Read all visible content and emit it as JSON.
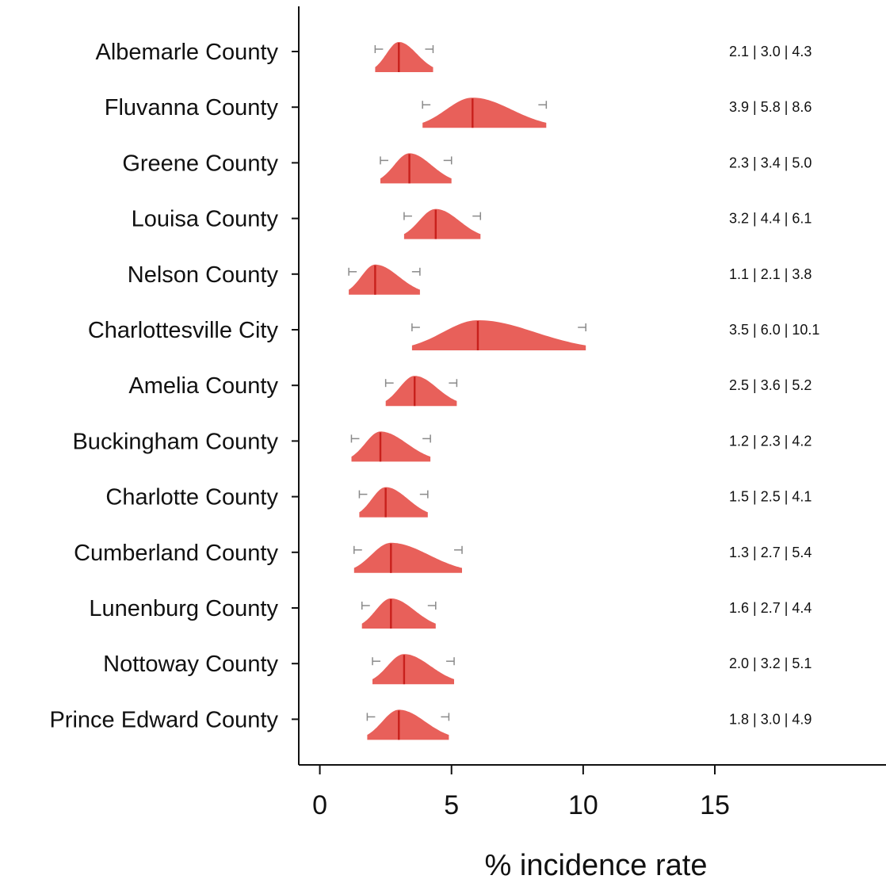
{
  "chart_data": {
    "type": "ridgeline",
    "xlabel": "% incidence rate",
    "xlim": [
      -0.8,
      21.5
    ],
    "x_ticks": [
      0,
      5,
      10,
      15
    ],
    "series_color": "#e8605a",
    "median_color": "#c8201c",
    "ci_color": "#8a8a8a",
    "categories": [
      {
        "name": "Albemarle County",
        "low": 2.1,
        "median": 3.0,
        "high": 4.3,
        "label": "2.1 | 3.0 | 4.3"
      },
      {
        "name": "Fluvanna County",
        "low": 3.9,
        "median": 5.8,
        "high": 8.6,
        "label": "3.9 | 5.8 | 8.6"
      },
      {
        "name": "Greene County",
        "low": 2.3,
        "median": 3.4,
        "high": 5.0,
        "label": "2.3 | 3.4 | 5.0"
      },
      {
        "name": "Louisa County",
        "low": 3.2,
        "median": 4.4,
        "high": 6.1,
        "label": "3.2 | 4.4 | 6.1"
      },
      {
        "name": "Nelson County",
        "low": 1.1,
        "median": 2.1,
        "high": 3.8,
        "label": "1.1 | 2.1 | 3.8"
      },
      {
        "name": "Charlottesville City",
        "low": 3.5,
        "median": 6.0,
        "high": 10.1,
        "label": "3.5 | 6.0 | 10.1"
      },
      {
        "name": "Amelia County",
        "low": 2.5,
        "median": 3.6,
        "high": 5.2,
        "label": "2.5 | 3.6 | 5.2"
      },
      {
        "name": "Buckingham County",
        "low": 1.2,
        "median": 2.3,
        "high": 4.2,
        "label": "1.2 | 2.3 | 4.2"
      },
      {
        "name": "Charlotte County",
        "low": 1.5,
        "median": 2.5,
        "high": 4.1,
        "label": "1.5 | 2.5 | 4.1"
      },
      {
        "name": "Cumberland County",
        "low": 1.3,
        "median": 2.7,
        "high": 5.4,
        "label": "1.3 | 2.7 | 5.4"
      },
      {
        "name": "Lunenburg County",
        "low": 1.6,
        "median": 2.7,
        "high": 4.4,
        "label": "1.6 | 2.7 | 4.4"
      },
      {
        "name": "Nottoway County",
        "low": 2.0,
        "median": 3.2,
        "high": 5.1,
        "label": "2.0 | 3.2 | 5.1"
      },
      {
        "name": "Prince Edward County",
        "low": 1.8,
        "median": 3.0,
        "high": 4.9,
        "label": "1.8 | 3.0 | 4.9"
      }
    ]
  }
}
